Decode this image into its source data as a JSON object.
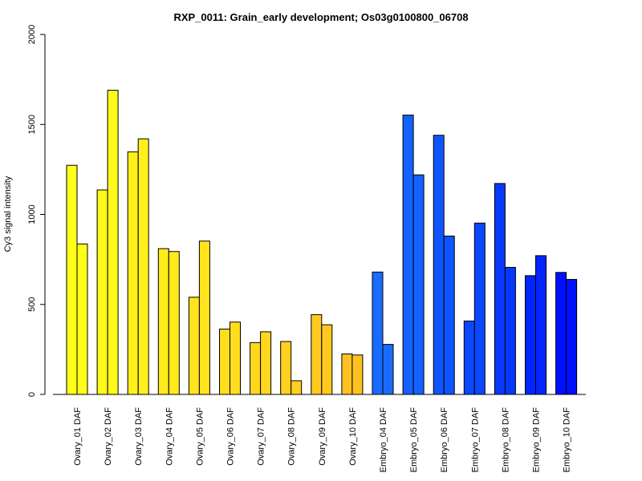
{
  "chart_data": {
    "type": "bar",
    "title": "RXP_0011: Grain_early development; Os03g0100800_06708",
    "xlabel": "",
    "ylabel": "Cy3 signal intensity",
    "ylim": [
      0,
      2000
    ],
    "yticks": [
      0,
      500,
      1000,
      1500,
      2000
    ],
    "grid": false,
    "legend": "none",
    "categories": [
      "Ovary_01 DAF",
      "Ovary_02 DAF",
      "Ovary_03 DAF",
      "Ovary_04 DAF",
      "Ovary_05 DAF",
      "Ovary_06 DAF",
      "Ovary_07 DAF",
      "Ovary_08 DAF",
      "Ovary_09 DAF",
      "Ovary_10 DAF",
      "Embryo_04 DAF",
      "Embryo_05 DAF",
      "Embryo_06 DAF",
      "Embryo_07 DAF",
      "Embryo_08 DAF",
      "Embryo_09 DAF",
      "Embryo_10 DAF"
    ],
    "group_colors": [
      "#ffff1a",
      "#fff81b",
      "#fff01c",
      "#ffea1c",
      "#ffe41d",
      "#ffde1e",
      "#ffd71e",
      "#ffd01f",
      "#ffc920",
      "#ffc220",
      "#1a6bff",
      "#1461ff",
      "#0f55ff",
      "#0a48ff",
      "#0638ff",
      "#0326ff",
      "#0010ff"
    ],
    "series": [
      {
        "values": [
          1273,
          1136,
          1348,
          810,
          540,
          363,
          288,
          294,
          443,
          225,
          680,
          1552,
          1440,
          408,
          1172,
          660,
          678
        ]
      },
      {
        "values": [
          836,
          1690,
          1420,
          794,
          852,
          402,
          348,
          76,
          387,
          219,
          278,
          1220,
          880,
          952,
          706,
          771,
          639
        ]
      }
    ]
  }
}
